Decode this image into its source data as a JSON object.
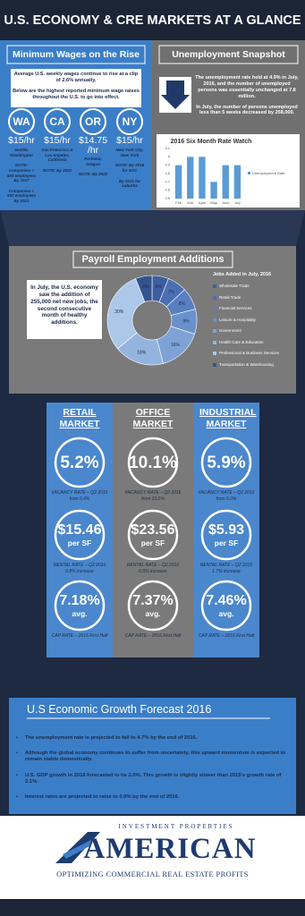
{
  "header": {
    "title": "U.S. ECONOMY & CRE MARKETS AT A GLANCE"
  },
  "minimum_wages": {
    "title": "Minimum Wages on the Rise",
    "intro": [
      "Average U.S. weekly wages continue to rise at a clip of 2.6% annually.",
      "Below are the highest reported minimum wage raises throughout the U.S. to go into effect."
    ],
    "states": [
      {
        "abbr": "WA",
        "wage": [
          "$15/hr"
        ],
        "location": "Seattle, Washington",
        "notes": [
          "NOTE: Companies > 500 employees By 2017",
          "Companies < 500 employees By 2021"
        ]
      },
      {
        "abbr": "CA",
        "wage": [
          "$15/hr"
        ],
        "location": "San Francisco & Los Angeles, California",
        "notes": [
          "NOTE: By 2022"
        ]
      },
      {
        "abbr": "OR",
        "wage": [
          "$14.75",
          "/hr"
        ],
        "location": "Portland, Oregon",
        "notes": [
          "NOTE: By 2022"
        ]
      },
      {
        "abbr": "NY",
        "wage": [
          "$15/hr"
        ],
        "location": "New York City, New York",
        "notes": [
          "NOTE: By 2018 for NYC",
          "By 2021 for suburbs"
        ]
      }
    ]
  },
  "unemployment": {
    "title": "Unemployment Snapshot",
    "text": [
      "The unemployment rate held at 4.9% in July, 2016, and the number of unemployed persons was essentially unchanged at 7.8 million.",
      "In July, the number of persons unemployed less than 5 weeks decreased by 258,000."
    ],
    "chart": {
      "type": "bar",
      "title": "2016 Six Month Rate Watch",
      "categories": [
        "Feb",
        "Mar",
        "April",
        "May",
        "June",
        "July"
      ],
      "series": [
        {
          "name": "Unemployment Rate",
          "color": "#5b9bd5",
          "values": [
            4.9,
            5.0,
            5.0,
            4.7,
            4.9,
            4.9
          ]
        }
      ],
      "ylim": [
        4.5,
        5.1
      ],
      "yticks": [
        4.5,
        4.6,
        4.7,
        4.8,
        4.9,
        5,
        5.1
      ]
    }
  },
  "payroll": {
    "title": "Payroll Employment Additions",
    "text": "In July, the U.S. economy saw the addition of 255,000 net new jobs, the second consecutive month of healthy additions.",
    "chart": {
      "type": "pie",
      "title": "Jobs Added in July, 2016",
      "categories": [
        "Wholesale Trade",
        "Retail Trade",
        "Financial Services",
        "Leisure & Hospitality",
        "Government",
        "Health Care & Education",
        "Professional & Business Services",
        "Transportation & Warehousing"
      ],
      "values": [
        6,
        7,
        8,
        9,
        16,
        18,
        30,
        6
      ],
      "value_labels": [
        "6%",
        "7%",
        "8%",
        "9%",
        "16%",
        "18%",
        "30%",
        "6%"
      ],
      "colors": [
        "#3d5f9f",
        "#4a6fb4",
        "#587fc2",
        "#6a91cc",
        "#7ea2d6",
        "#94b4de",
        "#adc7e8",
        "#34548f"
      ]
    }
  },
  "markets": [
    {
      "name": "RETAIL MARKET",
      "vacancy": {
        "value": "5.2%",
        "label": "VACANCY RATE – Q2 2016",
        "note": "from 5.4%"
      },
      "rent": {
        "value": "$15.46",
        "unit": "per SF",
        "label": "RENTAL RATE – Q2 2016",
        "note": "0.8% increase"
      },
      "cap": {
        "value": "7.18%",
        "unit": "avg.",
        "label": "CAP RATE – 2016 First Half"
      }
    },
    {
      "name": "OFFICE MARKET",
      "vacancy": {
        "value": "10.1%",
        "label": "VACANCY RATE – Q2 2016",
        "note": "from 10.2%"
      },
      "rent": {
        "value": "$23.56",
        "unit": "per SF",
        "label": "RENTAL RATE – Q2 2016",
        "note": "0.5% increase"
      },
      "cap": {
        "value": "7.37%",
        "unit": "avg.",
        "label": "CAP RATE – 2016 First Half"
      }
    },
    {
      "name": "INDUSTRIAL MARKET",
      "vacancy": {
        "value": "5.9%",
        "label": "VACANCY RATE – Q2 2016",
        "note": "from 6.0%"
      },
      "rent": {
        "value": "$5.93",
        "unit": "per SF",
        "label": "RENTAL RATE – Q2 2016",
        "note": "1.7% increase"
      },
      "cap": {
        "value": "7.46%",
        "unit": "avg.",
        "label": "CAP RATE – 2016 First Half"
      }
    }
  ],
  "forecast": {
    "title": "U.S Economic Growth Forecast 2016",
    "bullets": [
      "The unemployment rate is projected to fall to 4.7% by the end of 2016.",
      "Although the global economy continues to suffer from uncertainty, this upward momentum is expected to remain stable domestically.",
      "U.S. GDP growth in 2016 forecasted to be 2.0%. This growth is slightly slower than 2015's growth rate of 2.1%.",
      "Interest rates are projected to raise to 0.9% by the end of 2016."
    ]
  },
  "footer": {
    "brand_top": "INVESTMENT PROPERTIES",
    "brand": "AMERICAN",
    "tagline": "OPTIMIZING COMMERCIAL REAL ESTATE PROFITS"
  }
}
